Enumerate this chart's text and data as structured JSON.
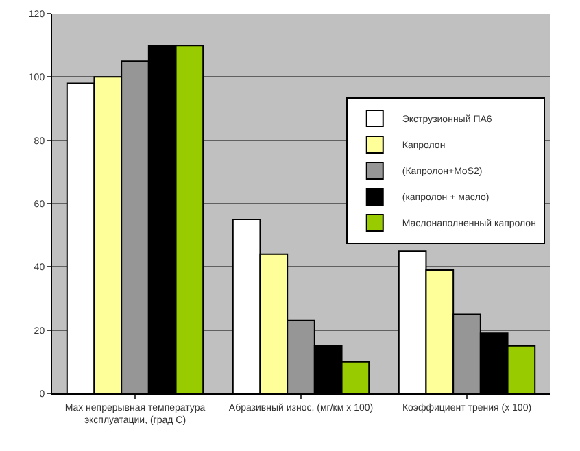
{
  "chart_data": {
    "type": "bar",
    "categories": [
      "Max непрерывная температура эксплуатации, (град С)",
      "Абразивный износ, (мг/км х 100)",
      "Коэффициент трения (х 100)"
    ],
    "series": [
      {
        "name": "Экструзионный ПА6",
        "color": "#ffffff",
        "values": [
          98,
          55,
          45
        ]
      },
      {
        "name": "Капролон",
        "color": "#ffff99",
        "values": [
          100,
          44,
          39
        ]
      },
      {
        "name": "(Капролон+MoS2)",
        "color": "#969696",
        "values": [
          105,
          23,
          25
        ]
      },
      {
        "name": "(капролон + масло)",
        "color": "#000000",
        "values": [
          110,
          15,
          19
        ]
      },
      {
        "name": "Маслонаполненный капролон",
        "color": "#99cc00",
        "values": [
          110,
          10,
          15
        ]
      }
    ],
    "ylim": [
      0,
      120
    ],
    "yticks": [
      0,
      20,
      40,
      60,
      80,
      100,
      120
    ],
    "grid": "y",
    "legend": "right"
  }
}
